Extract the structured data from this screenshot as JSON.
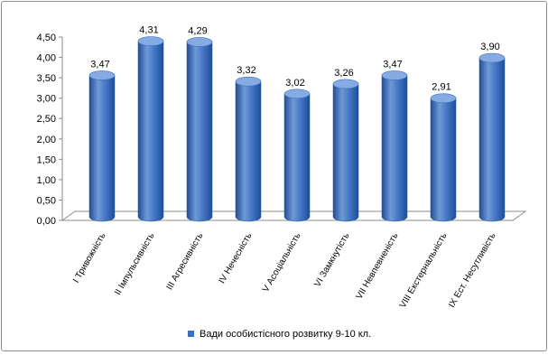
{
  "chart_data": {
    "type": "bar",
    "categories": [
      "I Тривожність",
      "II Імпульсивність",
      "III  Агресивність",
      "IV Нечесність",
      "V Асоціальність",
      "VI Замкнутість",
      "VII Невпевненість",
      "VIII Екстернальність",
      "IX Ест. Несутливість"
    ],
    "series": [
      {
        "name": "Вади особистісного розвитку 9-10 кл.",
        "values": [
          3.47,
          4.31,
          4.29,
          3.32,
          3.02,
          3.26,
          3.47,
          2.91,
          3.9
        ]
      }
    ],
    "data_labels": [
      "3,47",
      "4,31",
      "4,29",
      "3,32",
      "3,02",
      "3,26",
      "3,47",
      "2,91",
      "3,90"
    ],
    "y_tick_labels": [
      "0,00",
      "0,50",
      "1,00",
      "1,50",
      "2,00",
      "2,50",
      "3,00",
      "3,50",
      "4,00",
      "4,50"
    ],
    "ylim": [
      0,
      4.5
    ],
    "grid": false,
    "legend_position": "bottom",
    "colors": {
      "bar_light": "#6f9ad8",
      "bar_mid": "#3d6fbf",
      "bar_dark": "#1f4e96",
      "bar_top": "#86abe3",
      "axis": "#8c8c8c",
      "legend_marker": "#3b6fc4"
    }
  }
}
